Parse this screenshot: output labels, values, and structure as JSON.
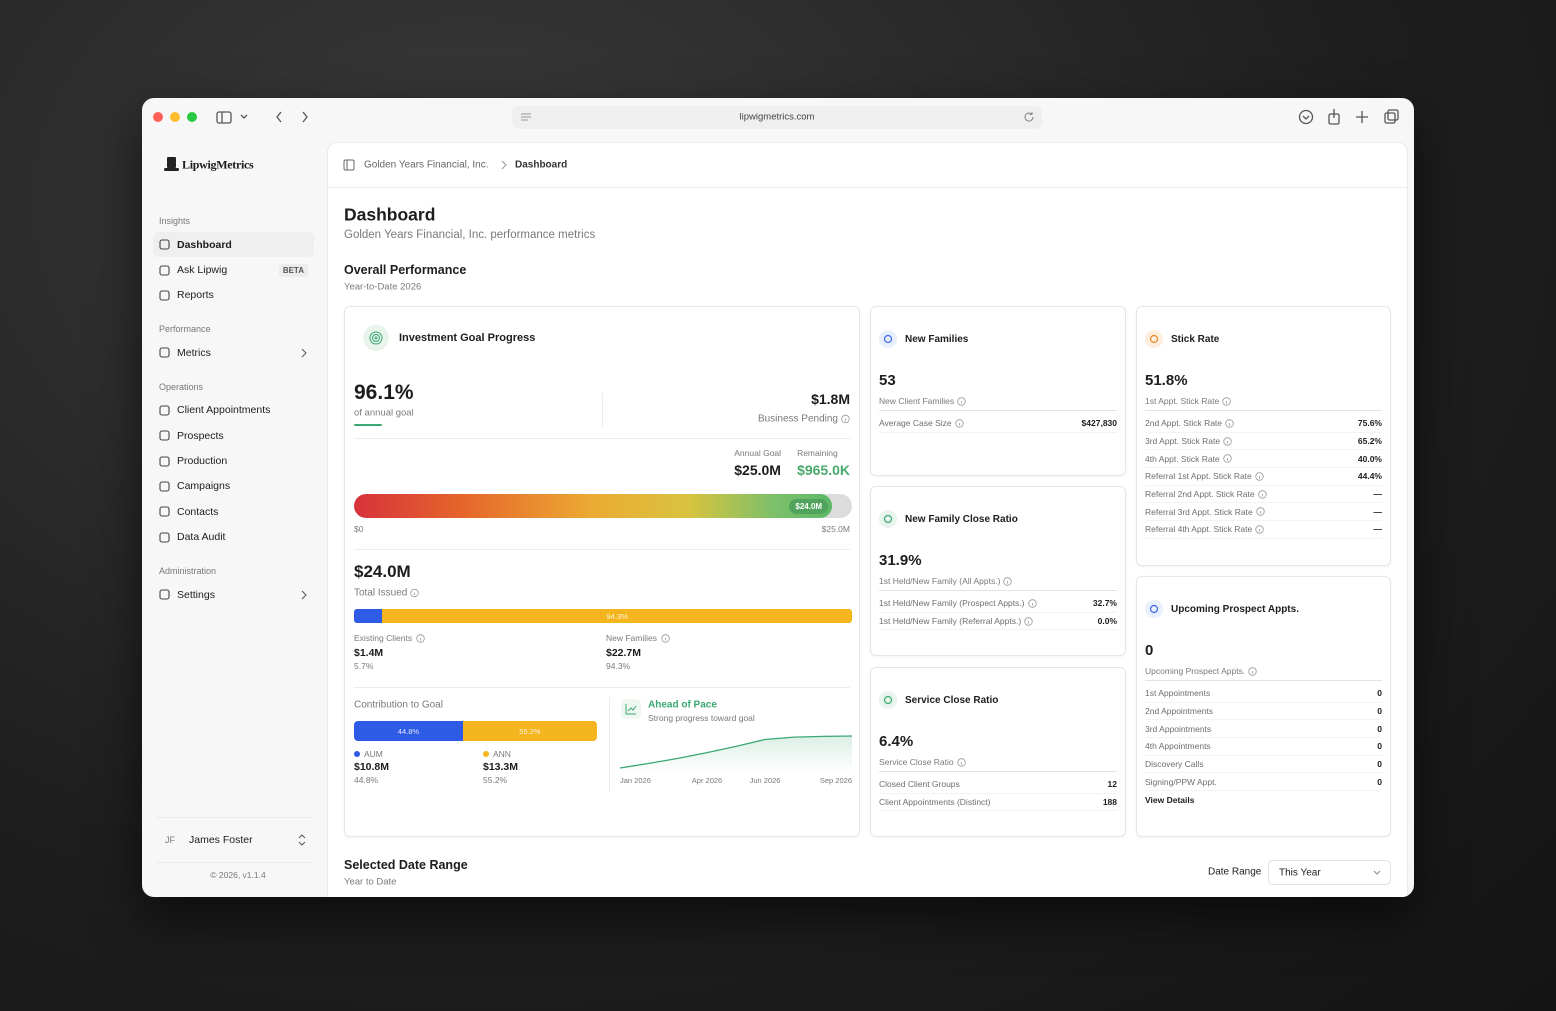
{
  "browser": {
    "url": "lipwigmetrics.com"
  },
  "sidebar": {
    "brand": "LipwigMetrics",
    "sections": [
      {
        "title": "Insights",
        "items": [
          {
            "label": "Dashboard",
            "active": true
          },
          {
            "label": "Ask Lipwig",
            "badge": "BETA"
          },
          {
            "label": "Reports"
          }
        ]
      },
      {
        "title": "Performance",
        "items": [
          {
            "label": "Metrics",
            "submenu": true
          }
        ]
      },
      {
        "title": "Operations",
        "items": [
          {
            "label": "Client Appointments"
          },
          {
            "label": "Prospects"
          },
          {
            "label": "Production"
          },
          {
            "label": "Campaigns"
          },
          {
            "label": "Contacts"
          },
          {
            "label": "Data Audit"
          }
        ]
      },
      {
        "title": "Administration",
        "items": [
          {
            "label": "Settings",
            "submenu": true
          }
        ]
      }
    ],
    "user": {
      "initials": "JF",
      "name": "James Foster"
    },
    "footer": "© 2026, v1.1.4"
  },
  "breadcrumb": [
    "Golden Years Financial, Inc.",
    "Dashboard"
  ],
  "header": {
    "title": "Dashboard",
    "subtitle": "Golden Years Financial, Inc. performance metrics"
  },
  "overall": {
    "title": "Overall Performance",
    "subtitle": "Year-to-Date 2026"
  },
  "investment": {
    "title": "Investment Goal Progress",
    "progress": "96.1%",
    "progress_caption": "of annual goal",
    "pending": "$1.8M",
    "pending_caption": "Business Pending",
    "annual_goal_label": "Annual Goal",
    "annual_goal": "$25.0M",
    "remaining_label": "Remaining",
    "remaining": "$965.0K",
    "goal_bar": {
      "value": {
        "value": 24.0,
        "label": "$24.0M"
      },
      "min": {
        "value": 0,
        "label": "$0"
      },
      "max": {
        "value": 25.0,
        "label": "$25.0M"
      }
    },
    "total_issued": "$24.0M",
    "total_issued_caption": "Total Issued",
    "issued_split": [
      {
        "name": "Existing Clients",
        "amount": "$1.4M",
        "share": {
          "value": 5.7,
          "label": "5.7%"
        },
        "color": "#2e5be6"
      },
      {
        "name": "New Families",
        "amount": "$22.7M",
        "share": {
          "value": 94.3,
          "label": "94.3%"
        },
        "color": "#f4b51e"
      }
    ],
    "contribution": {
      "title": "Contribution to Goal",
      "segments": [
        {
          "name": "AUM",
          "amount": "$10.8M",
          "share": {
            "value": 44.8,
            "label": "44.8%"
          },
          "color": "#2e5be6"
        },
        {
          "name": "ANN",
          "amount": "$13.3M",
          "share": {
            "value": 55.2,
            "label": "55.2%"
          },
          "color": "#f4b51e"
        }
      ]
    },
    "pace": {
      "title": "Ahead of Pace",
      "subtitle": "Strong progress toward goal",
      "x": [
        "Jan 2026",
        null,
        null,
        "Apr 2026",
        null,
        "Jun 2026",
        null,
        null,
        "Sep 2026"
      ],
      "values": [
        4.0,
        5.2,
        6.5,
        8.0,
        9.6,
        11.4,
        12.0,
        12.2,
        12.3
      ],
      "color": "#3aa872"
    }
  },
  "new_families": {
    "title": "New Families",
    "value": 53,
    "caption": "New Client Families",
    "rows": [
      {
        "label": "Average Case Size",
        "value": "$427,830"
      }
    ]
  },
  "stick_rate": {
    "title": "Stick Rate",
    "value": "51.8%",
    "caption": "1st Appt. Stick Rate",
    "rows": [
      {
        "label": "2nd Appt. Stick Rate",
        "value": "75.6%"
      },
      {
        "label": "3rd Appt. Stick Rate",
        "value": "65.2%"
      },
      {
        "label": "4th Appt. Stick Rate",
        "value": "40.0%"
      },
      {
        "label": "Referral 1st Appt. Stick Rate",
        "value": "44.4%"
      },
      {
        "label": "Referral 2nd Appt. Stick Rate",
        "value": "—"
      },
      {
        "label": "Referral 3rd Appt. Stick Rate",
        "value": "—"
      },
      {
        "label": "Referral 4th Appt. Stick Rate",
        "value": "—"
      }
    ]
  },
  "close_ratio": {
    "title": "New Family Close Ratio",
    "value": "31.9%",
    "caption": "1st Held/New Family (All Appts.)",
    "rows": [
      {
        "label": "1st Held/New Family (Prospect Appts.)",
        "value": "32.7%"
      },
      {
        "label": "1st Held/New Family (Referral Appts.)",
        "value": "0.0%"
      }
    ]
  },
  "upcoming": {
    "title": "Upcoming Prospect Appts.",
    "value": 0,
    "caption": "Upcoming Prospect Appts.",
    "rows": [
      {
        "label": "1st Appointments",
        "value": 0
      },
      {
        "label": "2nd Appointments",
        "value": 0
      },
      {
        "label": "3rd Appointments",
        "value": 0
      },
      {
        "label": "4th Appointments",
        "value": 0
      },
      {
        "label": "Discovery Calls",
        "value": 0
      },
      {
        "label": "Signing/PPW Appt.",
        "value": 0
      }
    ],
    "link": "View Details"
  },
  "service_ratio": {
    "title": "Service Close Ratio",
    "value": "6.4%",
    "caption": "Service Close Ratio",
    "rows": [
      {
        "label": "Closed Client Groups",
        "value": 12
      },
      {
        "label": "Client Appointments (Distinct)",
        "value": 188
      }
    ]
  },
  "date_range": {
    "title": "Selected Date Range",
    "subtitle": "Year to Date",
    "label": "Date Range",
    "value": "This Year"
  }
}
